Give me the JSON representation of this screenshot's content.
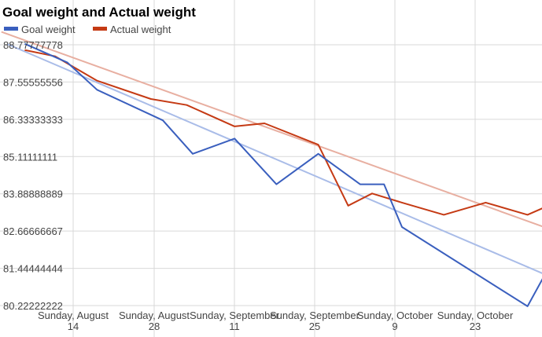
{
  "chart_data": {
    "type": "line",
    "title": "Goal weight and Actual weight",
    "xlabel": "",
    "ylabel": "",
    "legend_position": "top-left",
    "grid": true,
    "x_ticks": [
      "Sunday, August 14",
      "Sunday, August 28",
      "Sunday, September 11",
      "Sunday, September 25",
      "Sunday, October 9",
      "Sunday, October 23"
    ],
    "y_ticks": [
      "88.77777778",
      "87.55555556",
      "86.33333333",
      "85.11111111",
      "83.88888889",
      "82.66666667",
      "81.44444444",
      "80.22222222"
    ],
    "ylim": [
      79.9,
      89.2
    ],
    "series": [
      {
        "name": "Goal weight",
        "color": "#3A5FBE",
        "trend_color": "#A9BCE8",
        "points": [
          {
            "x": "2016-08-06",
            "y": 88.8
          },
          {
            "x": "2016-08-13",
            "y": 88.2
          },
          {
            "x": "2016-08-18",
            "y": 87.3
          },
          {
            "x": "2016-08-29",
            "y": 86.3
          },
          {
            "x": "2016-09-03",
            "y": 85.2
          },
          {
            "x": "2016-09-10",
            "y": 85.7
          },
          {
            "x": "2016-09-17",
            "y": 84.2
          },
          {
            "x": "2016-09-24",
            "y": 85.2
          },
          {
            "x": "2016-10-01",
            "y": 84.2
          },
          {
            "x": "2016-10-05",
            "y": 84.2
          },
          {
            "x": "2016-10-08",
            "y": 82.8
          },
          {
            "x": "2016-10-29",
            "y": 80.2
          },
          {
            "x": "2016-11-05",
            "y": 82.7
          }
        ],
        "trend": {
          "from": {
            "x": "2016-08-03",
            "y": 88.8
          },
          "to": {
            "x": "2016-11-05",
            "y": 80.9
          }
        }
      },
      {
        "name": "Actual weight",
        "color": "#C53A14",
        "trend_color": "#E8AFA1",
        "points": [
          {
            "x": "2016-08-06",
            "y": 88.6
          },
          {
            "x": "2016-08-11",
            "y": 88.4
          },
          {
            "x": "2016-08-18",
            "y": 87.6
          },
          {
            "x": "2016-08-27",
            "y": 87.0
          },
          {
            "x": "2016-09-02",
            "y": 86.8
          },
          {
            "x": "2016-09-10",
            "y": 86.1
          },
          {
            "x": "2016-09-15",
            "y": 86.2
          },
          {
            "x": "2016-09-24",
            "y": 85.5
          },
          {
            "x": "2016-09-29",
            "y": 83.5
          },
          {
            "x": "2016-10-03",
            "y": 83.9
          },
          {
            "x": "2016-10-08",
            "y": 83.6
          },
          {
            "x": "2016-10-15",
            "y": 83.2
          },
          {
            "x": "2016-10-22",
            "y": 83.6
          },
          {
            "x": "2016-10-29",
            "y": 83.2
          },
          {
            "x": "2016-11-05",
            "y": 83.8
          }
        ],
        "trend": {
          "from": {
            "x": "2016-08-02",
            "y": 89.2
          },
          "to": {
            "x": "2016-11-05",
            "y": 82.5
          }
        }
      }
    ]
  }
}
